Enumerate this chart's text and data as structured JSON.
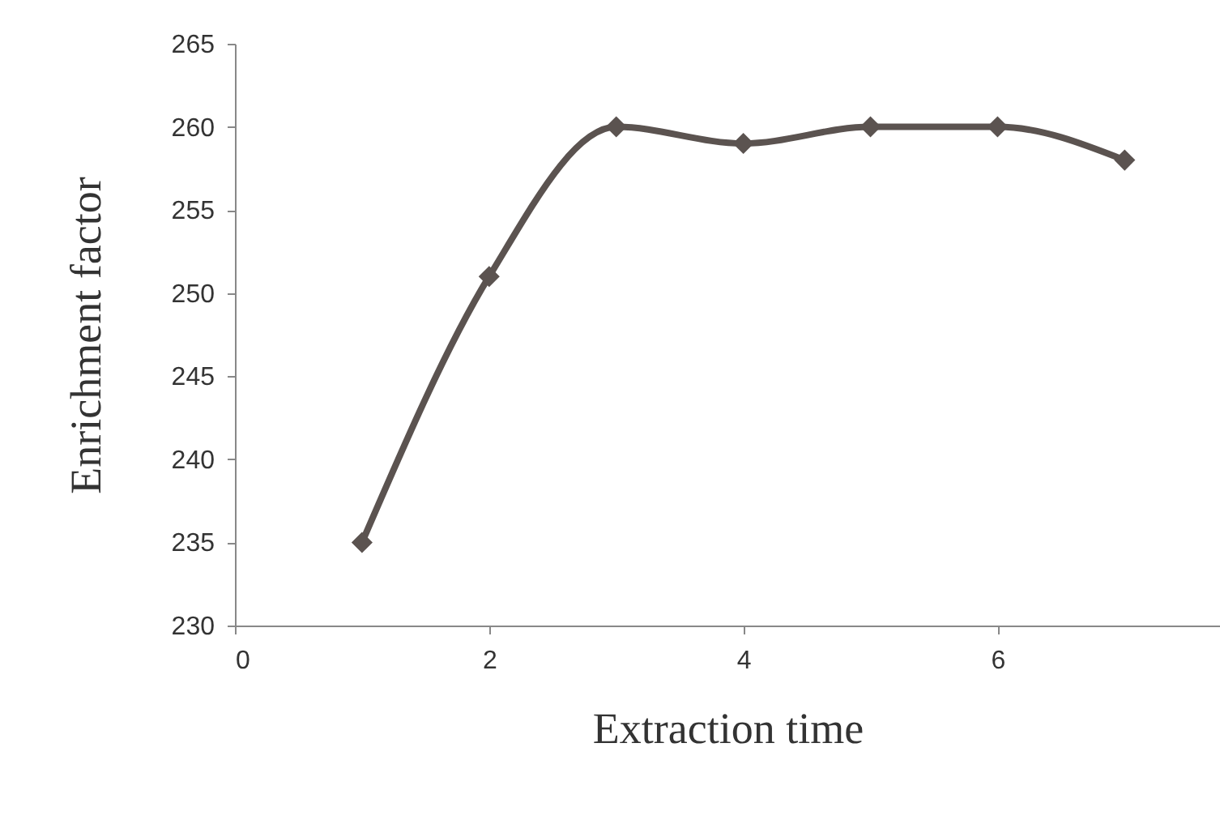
{
  "chart_data": {
    "type": "line",
    "xlabel": "Extraction time",
    "ylabel": "Enrichment factor",
    "x": [
      1,
      2,
      3,
      4,
      5,
      6,
      7
    ],
    "series": [
      {
        "color": "#5b5350",
        "values": [
          235,
          251,
          260,
          259,
          260,
          260,
          258
        ]
      }
    ],
    "xlim": [
      0,
      7.75
    ],
    "xticks": [
      0,
      2,
      4,
      6
    ],
    "ylim": [
      230,
      265
    ],
    "yticks": [
      230,
      235,
      240,
      245,
      250,
      255,
      260,
      265
    ],
    "grid": false,
    "marker": "diamond",
    "line_style": "solid"
  }
}
